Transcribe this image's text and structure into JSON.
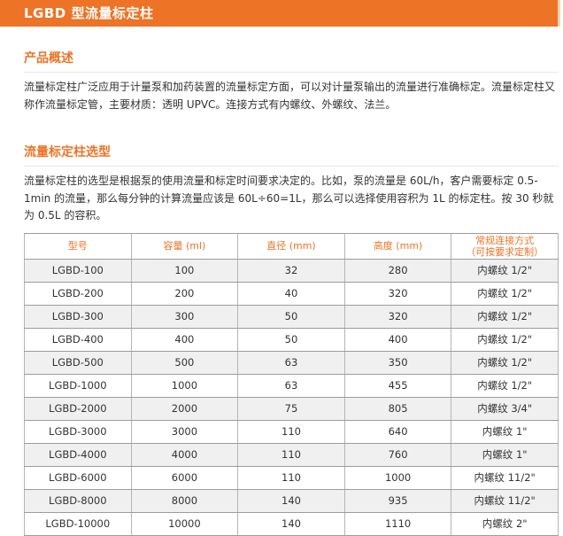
{
  "page": {
    "title": "LGBD 型流量标定柱"
  },
  "colors": {
    "accent": "#ED7326",
    "accent_strip": "#F9D4AE",
    "row_alt": "#F0F0F0",
    "table_border": "#9C9C9C",
    "text": "#333333"
  },
  "sections": [
    {
      "heading": "产品概述",
      "body": "流量标定柱广泛应用于计量泵和加药装置的流量标定方面，可以对计量泵输出的流量进行准确标定。流量标定柱又称作流量标定管，主要材质：透明 UPVC。连接方式有内螺纹、外螺纹、法兰。"
    },
    {
      "heading": "流量标定柱选型",
      "body": "流量标定柱的选型是根据泵的使用流量和标定时间要求决定的。比如，泵的流量是 60L/h，客户需要标定 0.5-1min 的流量，那么每分钟的计算流量应该是 60L÷60=1L，那么可以选择使用容积为 1L 的标定柱。按 30 秒就为 0.5L 的容积。"
    }
  ],
  "table": {
    "columns": [
      {
        "label": "型号"
      },
      {
        "label": "容量 (ml)"
      },
      {
        "label": "直径 (mm)"
      },
      {
        "label": "高度 (mm)"
      },
      {
        "label": "常规连接方式",
        "sub": "（可按要求定制）"
      }
    ],
    "rows": [
      [
        "LGBD-100",
        "100",
        "32",
        "280",
        "内螺纹 1/2\""
      ],
      [
        "LGBD-200",
        "200",
        "40",
        "320",
        "内螺纹 1/2\""
      ],
      [
        "LGBD-300",
        "300",
        "50",
        "320",
        "内螺纹 1/2\""
      ],
      [
        "LGBD-400",
        "400",
        "50",
        "400",
        "内螺纹 1/2\""
      ],
      [
        "LGBD-500",
        "500",
        "63",
        "350",
        "内螺纹 1/2\""
      ],
      [
        "LGBD-1000",
        "1000",
        "63",
        "455",
        "内螺纹 1/2\""
      ],
      [
        "LGBD-2000",
        "2000",
        "75",
        "805",
        "内螺纹 3/4\""
      ],
      [
        "LGBD-3000",
        "3000",
        "110",
        "640",
        "内螺纹 1\""
      ],
      [
        "LGBD-4000",
        "4000",
        "110",
        "760",
        "内螺纹 1\""
      ],
      [
        "LGBD-6000",
        "6000",
        "110",
        "1000",
        "内螺纹 11/2\""
      ],
      [
        "LGBD-8000",
        "8000",
        "140",
        "935",
        "内螺纹 11/2\""
      ],
      [
        "LGBD-10000",
        "10000",
        "140",
        "1110",
        "内螺纹 2\""
      ]
    ]
  }
}
